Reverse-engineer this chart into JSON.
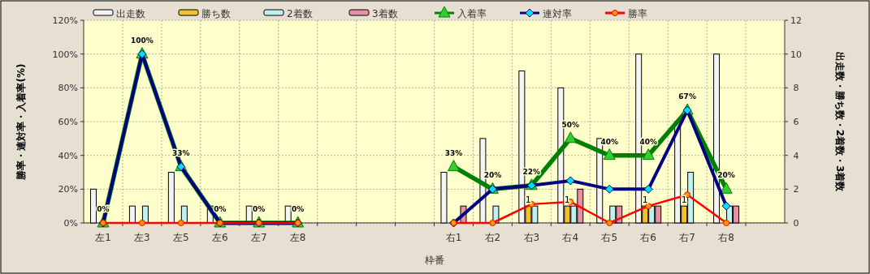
{
  "chart_data": {
    "type": "bar",
    "xlabel": "枠番",
    "ylabel": "勝率・連対率・入着率(%)",
    "y2label": "出走数・勝ち数・2着数・3着数",
    "categories": [
      "左1",
      "左3",
      "左5",
      "左6",
      "左7",
      "左8",
      null,
      null,
      null,
      "右1",
      "右2",
      "右3",
      "右4",
      "右5",
      "右6",
      "右7",
      "右8",
      null
    ],
    "ylim": [
      0,
      120
    ],
    "yticks": [
      {
        "value": 0,
        "label": "0%"
      },
      {
        "value": 20,
        "label": "20%"
      },
      {
        "value": 40,
        "label": "40%"
      },
      {
        "value": 60,
        "label": "60%"
      },
      {
        "value": 80,
        "label": "80%"
      },
      {
        "value": 100,
        "label": "100%"
      },
      {
        "value": 120,
        "label": "120%"
      }
    ],
    "y2lim": [
      0,
      12
    ],
    "y2ticks": [
      0,
      2,
      4,
      6,
      8,
      10,
      12
    ],
    "grid": true,
    "legend": "top",
    "series": [
      {
        "name": "出走数",
        "axis": "y2",
        "color": "#f4f4f4",
        "values": [
          2,
          1,
          3,
          1,
          1,
          1,
          null,
          null,
          null,
          3,
          5,
          9,
          8,
          5,
          10,
          6,
          10,
          null
        ]
      },
      {
        "name": "勝ち数",
        "axis": "y2",
        "color": "#f0c030",
        "values": [
          0,
          0,
          0,
          0,
          0,
          0,
          null,
          null,
          null,
          0,
          0,
          1,
          1,
          0,
          1,
          1,
          0,
          null
        ],
        "value_labels": [
          null,
          null,
          null,
          null,
          null,
          null,
          null,
          null,
          null,
          null,
          null,
          "1",
          "1",
          null,
          "1",
          "1",
          null,
          null
        ]
      },
      {
        "name": "2着数",
        "axis": "y2",
        "color": "#c0f0f0",
        "values": [
          0,
          1,
          1,
          0,
          0,
          0,
          null,
          null,
          null,
          0,
          1,
          1,
          1,
          1,
          1,
          3,
          1,
          null
        ]
      },
      {
        "name": "3着数",
        "axis": "y2",
        "color": "#e890a8",
        "values": [
          0,
          0,
          0,
          0,
          0,
          0,
          null,
          null,
          null,
          1,
          0,
          0,
          2,
          1,
          1,
          0,
          1,
          null
        ]
      },
      {
        "name": "入着率",
        "type": "line",
        "marker": "triangle",
        "color": "#008000",
        "values": [
          0,
          100,
          33.3,
          0,
          0,
          0,
          null,
          null,
          null,
          33.3,
          20,
          22.2,
          50,
          40,
          40,
          66.7,
          20,
          null
        ],
        "value_labels": [
          "0%",
          "100%",
          "33%",
          "0%",
          "0%",
          "0%",
          null,
          null,
          null,
          "33%",
          "20%",
          "22%",
          "50%",
          "40%",
          "40%",
          "67%",
          "20%",
          null
        ]
      },
      {
        "name": "連対率",
        "type": "line",
        "marker": "diamond",
        "color": "#000080",
        "values": [
          0,
          100,
          33.3,
          0,
          0,
          0,
          null,
          null,
          null,
          0,
          20,
          22.2,
          25,
          20,
          20,
          66.7,
          10,
          null
        ]
      },
      {
        "name": "勝率",
        "type": "line",
        "marker": "circle",
        "color": "#ff0000",
        "values": [
          0,
          0,
          0,
          0,
          0,
          0,
          null,
          null,
          null,
          0,
          0,
          11.1,
          12.5,
          0,
          10,
          16.7,
          0,
          null
        ]
      }
    ]
  }
}
